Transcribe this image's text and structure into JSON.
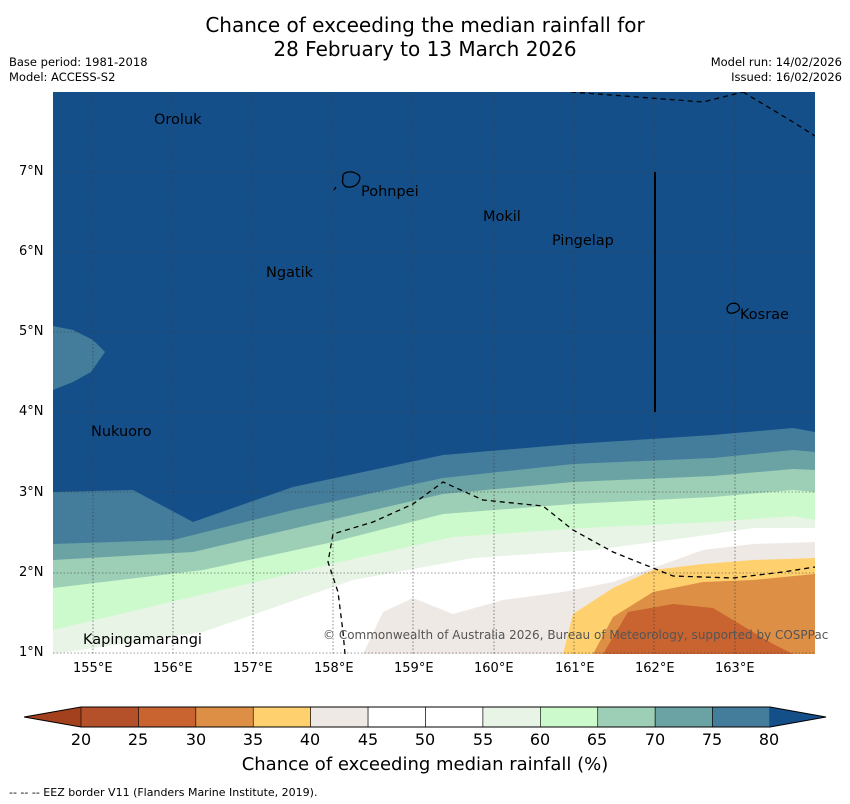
{
  "header": {
    "title_line1": "Chance of exceeding the median rainfall for",
    "title_line2": "28 February to 13 March 2026",
    "base_period": "Base period: 1981-2018",
    "model": "Model: ACCESS-S2",
    "model_run": "Model run: 14/02/2026",
    "issued": "Issued: 16/02/2026"
  },
  "map": {
    "lat_ticks": [
      "7°N",
      "6°N",
      "5°N",
      "4°N",
      "3°N",
      "2°N",
      "1°N"
    ],
    "lon_ticks": [
      "155°E",
      "156°E",
      "157°E",
      "158°E",
      "159°E",
      "160°E",
      "161°E",
      "162°E",
      "163°E"
    ],
    "places": [
      "Oroluk",
      "Pohnpei",
      "Mokil",
      "Pingelap",
      "Ngatik",
      "Kosrae",
      "Nukuoro",
      "Kapingamarangi"
    ],
    "copyright": "© Commonwealth of Australia 2026, Bureau of Meteorology, supported by COSPPac"
  },
  "colorbar": {
    "ticks": [
      "20",
      "25",
      "30",
      "35",
      "40",
      "45",
      "50",
      "55",
      "60",
      "65",
      "70",
      "75",
      "80"
    ],
    "colors": [
      "#b5512a",
      "#c9632f",
      "#dd8f45",
      "#ffd06e",
      "#efe9e5",
      "#ffffff",
      "#ffffff",
      "#e8f4e6",
      "#ccfacc",
      "#9ccfb6",
      "#6ba3a5",
      "#447d9c"
    ],
    "under_color": "#a3401d",
    "over_color": "#144f8a",
    "label": "Chance of exceeding median rainfall (%)"
  },
  "footer": {
    "eez_note": "-- -- -- EEZ border V11 (Flanders Marine Institute, 2019)."
  }
}
